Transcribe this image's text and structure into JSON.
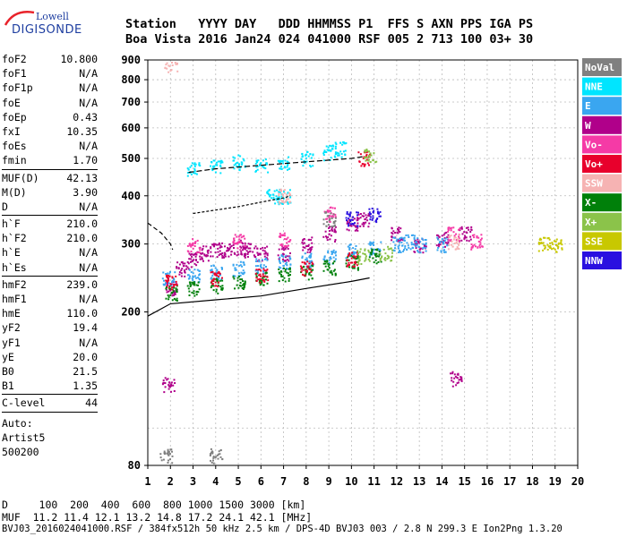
{
  "logo": {
    "line1": "Lowell",
    "line2": "DIGISONDE"
  },
  "header": {
    "line1": "Station   YYYY DAY   DDD HHMMSS P1  FFS S AXN PPS IGA PS",
    "line2": "Boa Vista 2016 Jan24 024 041000 RSF 005 2 713 100 03+ 30"
  },
  "params": {
    "g1": [
      [
        "foF2",
        "10.800"
      ],
      [
        "foF1",
        "N/A"
      ],
      [
        "foF1p",
        "N/A"
      ],
      [
        "foE",
        "N/A"
      ],
      [
        "foEp",
        "0.43"
      ],
      [
        "fxI",
        "10.35"
      ],
      [
        "foEs",
        "N/A"
      ],
      [
        "fmin",
        "1.70"
      ]
    ],
    "g2": [
      [
        "MUF(D)",
        "42.13"
      ],
      [
        "M(D)",
        "3.90"
      ],
      [
        "D",
        "N/A"
      ]
    ],
    "g3": [
      [
        "h`F",
        "210.0"
      ],
      [
        "h`F2",
        "210.0"
      ],
      [
        "h`E",
        "N/A"
      ],
      [
        "h`Es",
        "N/A"
      ]
    ],
    "g4": [
      [
        "hmF2",
        "239.0"
      ],
      [
        "hmF1",
        "N/A"
      ],
      [
        "hmE",
        "110.0"
      ],
      [
        "yF2",
        "19.4"
      ],
      [
        "yF1",
        "N/A"
      ],
      [
        "yE",
        "20.0"
      ],
      [
        "B0",
        "21.5"
      ],
      [
        "B1",
        "1.35"
      ]
    ],
    "g5": [
      [
        "C-level",
        "44"
      ]
    ],
    "auto": [
      "Auto:",
      "Artist5",
      "500200"
    ]
  },
  "legend": [
    {
      "label": "NoVal",
      "color": "#808080"
    },
    {
      "label": "NNE",
      "color": "#00e5ff"
    },
    {
      "label": "E",
      "color": "#3aa6f0"
    },
    {
      "label": "W",
      "color": "#b0008a"
    },
    {
      "label": "Vo-",
      "color": "#f53aa6"
    },
    {
      "label": "Vo+",
      "color": "#e8002c"
    },
    {
      "label": "SSW",
      "color": "#f6b3b3"
    },
    {
      "label": "X-",
      "color": "#00800a"
    },
    {
      "label": "X+",
      "color": "#8bc34a"
    },
    {
      "label": "SSE",
      "color": "#c8c800"
    },
    {
      "label": "NNW",
      "color": "#2a10e0"
    }
  ],
  "chart_data": {
    "type": "scatter",
    "title": "",
    "xlabel": "",
    "ylabel": "",
    "xlim": [
      1,
      20
    ],
    "ylim": [
      80,
      900
    ],
    "y_scale": "log",
    "x_ticks": [
      1,
      2,
      3,
      4,
      5,
      6,
      7,
      8,
      9,
      10,
      11,
      12,
      13,
      14,
      15,
      16,
      17,
      18,
      19,
      20
    ],
    "y_ticks": [
      80,
      200,
      300,
      400,
      500,
      600,
      700,
      800,
      900
    ],
    "grid": true,
    "legend_position": "right",
    "series": [
      {
        "name": "W",
        "color": "#b0008a",
        "points": [
          [
            2.0,
            230
          ],
          [
            2.5,
            260
          ],
          [
            3.0,
            275
          ],
          [
            3.5,
            285
          ],
          [
            4.0,
            290
          ],
          [
            4.5,
            290
          ],
          [
            5.0,
            295
          ],
          [
            5.5,
            290
          ],
          [
            6.0,
            285
          ],
          [
            7.0,
            285
          ],
          [
            8.0,
            300
          ],
          [
            9.0,
            320
          ],
          [
            10.0,
            340
          ],
          [
            10.5,
            350
          ],
          [
            12.0,
            320
          ],
          [
            13.0,
            300
          ],
          [
            14.0,
            310
          ],
          [
            15.0,
            320
          ],
          [
            1.9,
            130
          ],
          [
            14.6,
            135
          ]
        ]
      },
      {
        "name": "E",
        "color": "#3aa6f0",
        "points": [
          [
            1.9,
            245
          ],
          [
            3.0,
            250
          ],
          [
            4.0,
            255
          ],
          [
            5.0,
            260
          ],
          [
            6.0,
            265
          ],
          [
            7.0,
            270
          ],
          [
            8.0,
            275
          ],
          [
            9.0,
            280
          ],
          [
            10.0,
            290
          ],
          [
            11.0,
            295
          ],
          [
            12.0,
            300
          ],
          [
            12.5,
            305
          ],
          [
            13.0,
            300
          ],
          [
            14.0,
            300
          ]
        ]
      },
      {
        "name": "NNE",
        "color": "#00e5ff",
        "points": [
          [
            3.0,
            470
          ],
          [
            4.0,
            480
          ],
          [
            5.0,
            490
          ],
          [
            6.0,
            480
          ],
          [
            7.0,
            490
          ],
          [
            8.0,
            500
          ],
          [
            9.0,
            520
          ],
          [
            9.5,
            530
          ],
          [
            6.5,
            400
          ],
          [
            7.0,
            400
          ]
        ]
      },
      {
        "name": "X-",
        "color": "#00800a",
        "points": [
          [
            2.0,
            225
          ],
          [
            3.0,
            230
          ],
          [
            4.0,
            235
          ],
          [
            5.0,
            240
          ],
          [
            6.0,
            245
          ],
          [
            7.0,
            250
          ],
          [
            8.0,
            255
          ],
          [
            9.0,
            262
          ],
          [
            10.0,
            270
          ],
          [
            11.0,
            280
          ]
        ]
      },
      {
        "name": "Vo-",
        "color": "#f53aa6",
        "points": [
          [
            3.0,
            300
          ],
          [
            5.0,
            305
          ],
          [
            7.0,
            310
          ],
          [
            9.0,
            360
          ],
          [
            14.5,
            320
          ],
          [
            15.5,
            305
          ]
        ]
      },
      {
        "name": "Vo+",
        "color": "#e8002c",
        "points": [
          [
            2.0,
            240
          ],
          [
            4.0,
            245
          ],
          [
            6.0,
            250
          ],
          [
            8.0,
            260
          ],
          [
            10.0,
            275
          ],
          [
            10.5,
            500
          ]
        ]
      },
      {
        "name": "SSW",
        "color": "#f6b3b3",
        "points": [
          [
            2.0,
            880
          ],
          [
            7.0,
            400
          ],
          [
            14.5,
            305
          ]
        ]
      },
      {
        "name": "SSE",
        "color": "#c8c800",
        "points": [
          [
            19.0,
            300
          ],
          [
            18.5,
            300
          ]
        ]
      },
      {
        "name": "NNW",
        "color": "#2a10e0",
        "points": [
          [
            10.0,
            350
          ],
          [
            11.0,
            360
          ]
        ]
      },
      {
        "name": "X+",
        "color": "#8bc34a",
        "points": [
          [
            10.8,
            510
          ],
          [
            10.5,
            280
          ],
          [
            11.5,
            285
          ]
        ]
      },
      {
        "name": "NoVal",
        "color": "#808080",
        "points": [
          [
            1.8,
            85
          ],
          [
            4.0,
            85
          ],
          [
            9.0,
            350
          ]
        ]
      }
    ],
    "profile_curve": [
      [
        1.0,
        340
      ],
      [
        1.3,
        330
      ],
      [
        1.6,
        320
      ],
      [
        1.8,
        310
      ],
      [
        2.0,
        300
      ],
      [
        2.1,
        290
      ]
    ],
    "trace_upper": [
      [
        2.8,
        460
      ],
      [
        4.0,
        470
      ],
      [
        6.0,
        480
      ],
      [
        8.0,
        490
      ],
      [
        10.0,
        500
      ],
      [
        10.5,
        505
      ]
    ],
    "trace_lower": [
      [
        1.0,
        195
      ],
      [
        2.0,
        210
      ],
      [
        4.0,
        215
      ],
      [
        6.0,
        220
      ],
      [
        8.0,
        230
      ],
      [
        10.0,
        240
      ],
      [
        10.8,
        245
      ]
    ],
    "trace_mid": [
      [
        3.0,
        360
      ],
      [
        5.0,
        375
      ],
      [
        6.0,
        385
      ],
      [
        7.0,
        395
      ],
      [
        7.3,
        400
      ]
    ]
  },
  "bottom": {
    "line1": "D     100  200  400  600  800 1000 1500 3000 [km]",
    "line2": "MUF  11.2 11.4 12.1 13.2 14.8 17.2 24.1 42.1 [MHz]",
    "line3": "BVJ03_2016024041000.RSF / 384fx512h 50 kHz 2.5 km / DPS-4D BVJ03 003 / 2.8 N 299.3 E Ion2Png 1.3.20"
  }
}
